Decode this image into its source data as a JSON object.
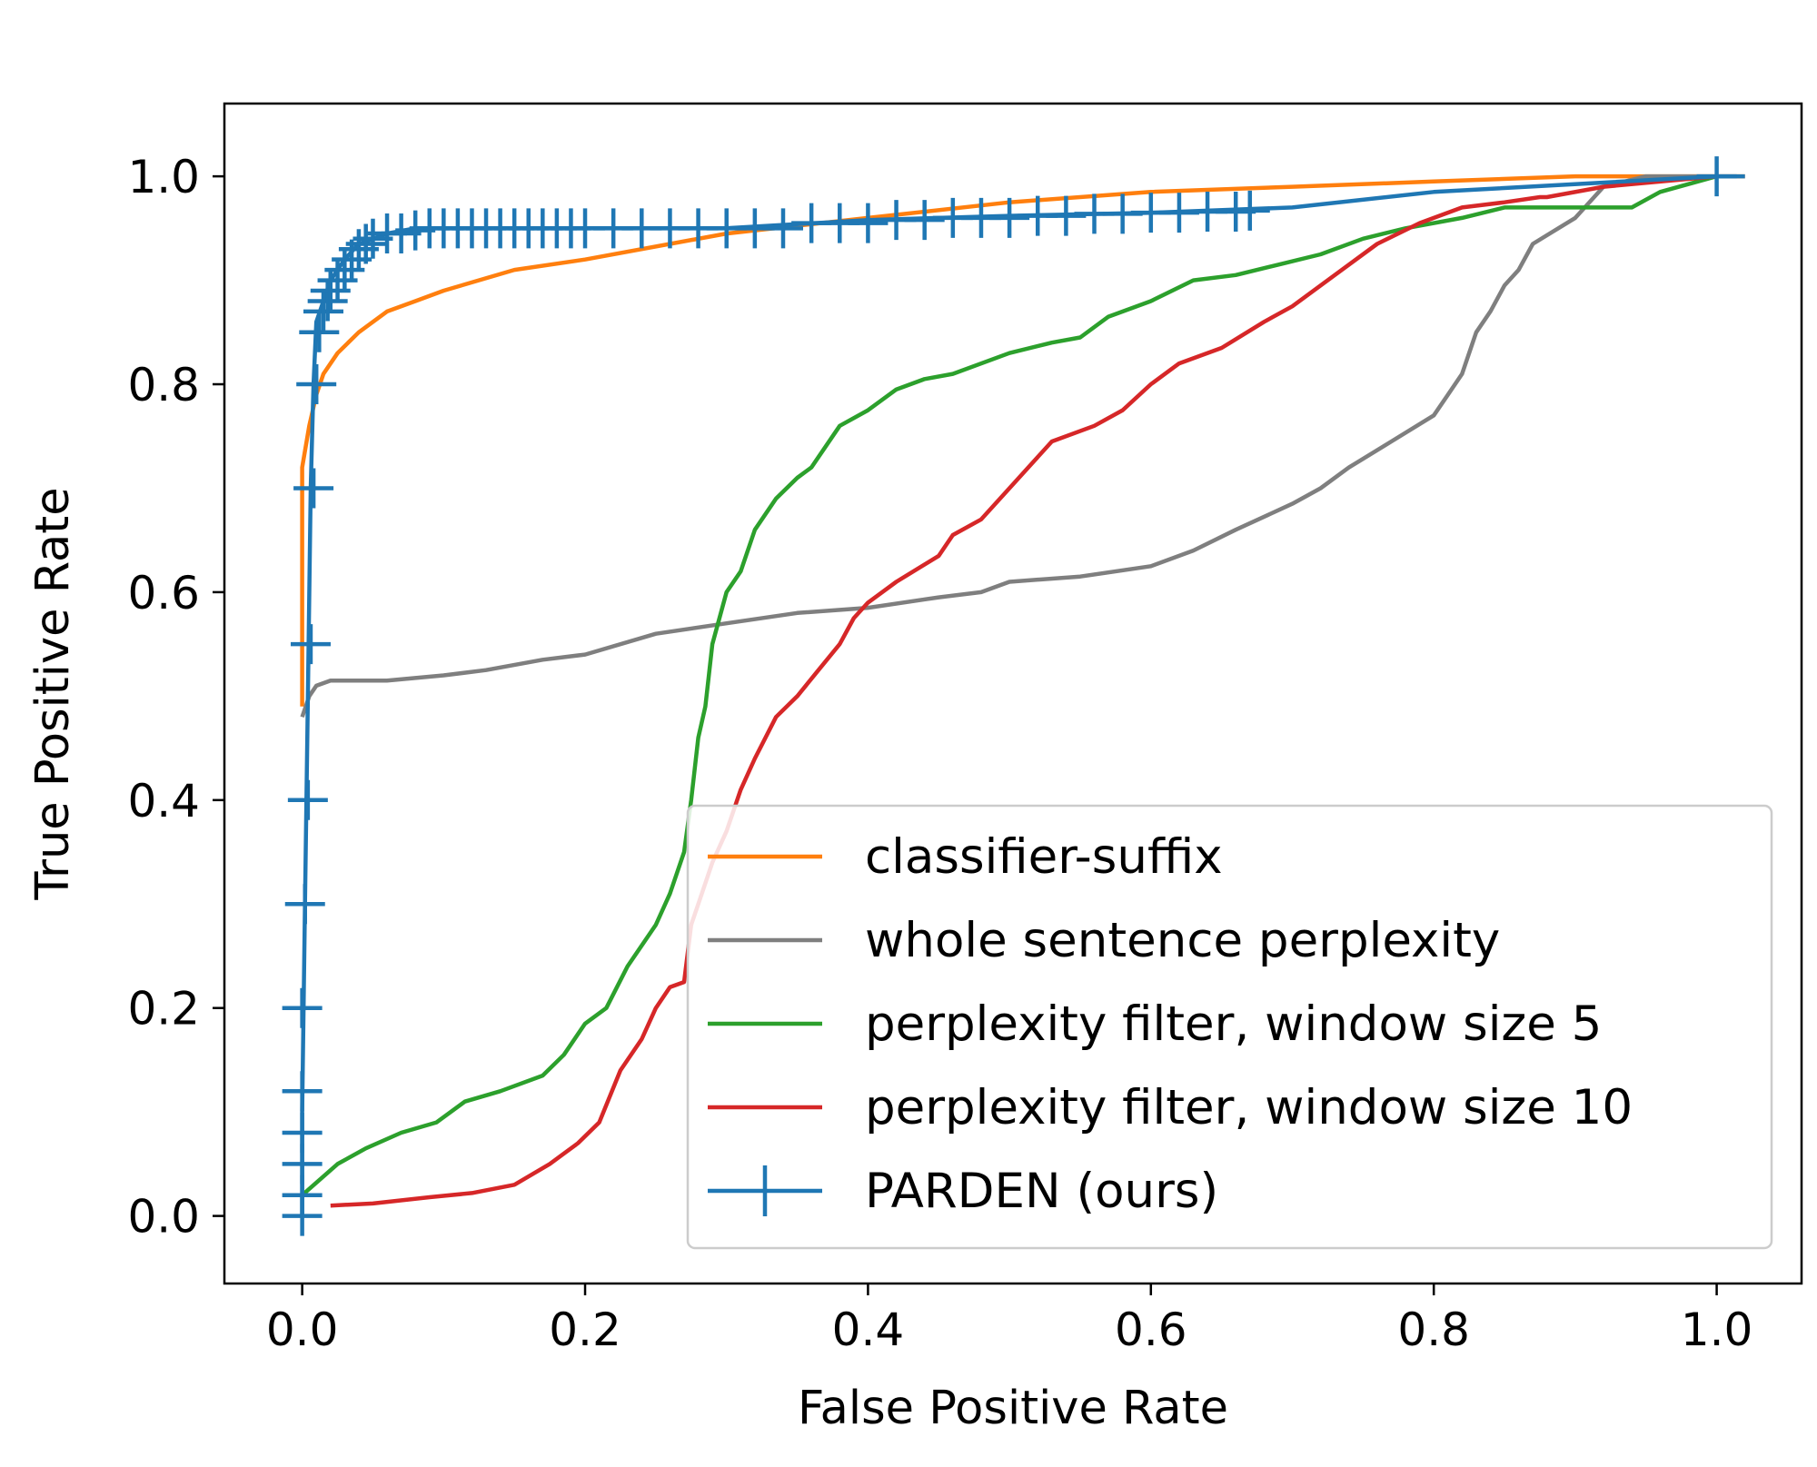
{
  "chart_data": {
    "type": "line",
    "title": "",
    "xlabel": "False Positive Rate",
    "ylabel": "True Positive Rate",
    "xlim": [
      -0.055,
      1.06
    ],
    "ylim": [
      -0.065,
      1.07
    ],
    "x_ticks": [
      "0.0",
      "0.2",
      "0.4",
      "0.6",
      "0.8",
      "1.0"
    ],
    "y_ticks": [
      "0.0",
      "0.2",
      "0.4",
      "0.6",
      "0.8",
      "1.0"
    ],
    "grid": false,
    "legend_position": "lower-right",
    "series": [
      {
        "name": "classifier-suffix",
        "color": "#ff7f0e",
        "marker": "none",
        "x": [
          0.0,
          0.0,
          0.005,
          0.01,
          0.015,
          0.025,
          0.04,
          0.06,
          0.08,
          0.1,
          0.15,
          0.2,
          0.3,
          0.4,
          0.5,
          0.6,
          0.7,
          0.8,
          0.9,
          1.0,
          1.02
        ],
        "y": [
          0.49,
          0.72,
          0.76,
          0.79,
          0.81,
          0.83,
          0.85,
          0.87,
          0.88,
          0.89,
          0.91,
          0.92,
          0.945,
          0.96,
          0.975,
          0.985,
          0.99,
          0.995,
          1.0,
          1.0,
          1.0
        ]
      },
      {
        "name": "whole sentence perplexity",
        "color": "#7f7f7f",
        "marker": "none",
        "x": [
          0.0,
          0.005,
          0.01,
          0.02,
          0.06,
          0.1,
          0.13,
          0.17,
          0.2,
          0.25,
          0.3,
          0.35,
          0.4,
          0.45,
          0.48,
          0.5,
          0.55,
          0.6,
          0.63,
          0.66,
          0.7,
          0.72,
          0.74,
          0.77,
          0.8,
          0.81,
          0.82,
          0.83,
          0.84,
          0.85,
          0.86,
          0.87,
          0.9,
          0.92,
          0.95,
          1.0
        ],
        "y": [
          0.48,
          0.5,
          0.51,
          0.515,
          0.515,
          0.52,
          0.525,
          0.535,
          0.54,
          0.56,
          0.57,
          0.58,
          0.585,
          0.595,
          0.6,
          0.61,
          0.615,
          0.625,
          0.64,
          0.66,
          0.685,
          0.7,
          0.72,
          0.745,
          0.77,
          0.79,
          0.81,
          0.85,
          0.87,
          0.895,
          0.91,
          0.935,
          0.96,
          0.99,
          1.0,
          1.0
        ]
      },
      {
        "name": "perplexity filter, window size 5",
        "color": "#2ca02c",
        "marker": "none",
        "x": [
          0.0,
          0.025,
          0.045,
          0.07,
          0.095,
          0.115,
          0.14,
          0.17,
          0.185,
          0.2,
          0.215,
          0.23,
          0.25,
          0.26,
          0.27,
          0.275,
          0.28,
          0.285,
          0.29,
          0.3,
          0.31,
          0.32,
          0.335,
          0.35,
          0.36,
          0.38,
          0.4,
          0.42,
          0.44,
          0.46,
          0.5,
          0.53,
          0.55,
          0.57,
          0.6,
          0.63,
          0.66,
          0.69,
          0.72,
          0.75,
          0.78,
          0.82,
          0.85,
          0.88,
          0.94,
          0.96,
          1.0
        ],
        "y": [
          0.02,
          0.05,
          0.065,
          0.08,
          0.09,
          0.11,
          0.12,
          0.135,
          0.155,
          0.185,
          0.2,
          0.24,
          0.28,
          0.31,
          0.35,
          0.4,
          0.46,
          0.49,
          0.55,
          0.6,
          0.62,
          0.66,
          0.69,
          0.71,
          0.72,
          0.76,
          0.775,
          0.795,
          0.805,
          0.81,
          0.83,
          0.84,
          0.845,
          0.865,
          0.88,
          0.9,
          0.905,
          0.915,
          0.925,
          0.94,
          0.95,
          0.96,
          0.97,
          0.97,
          0.97,
          0.985,
          1.0
        ]
      },
      {
        "name": "perplexity filter, window size 10",
        "color": "#d62728",
        "marker": "none",
        "x": [
          0.02,
          0.05,
          0.09,
          0.12,
          0.15,
          0.175,
          0.195,
          0.21,
          0.225,
          0.24,
          0.25,
          0.26,
          0.27,
          0.275,
          0.28,
          0.29,
          0.3,
          0.31,
          0.32,
          0.335,
          0.35,
          0.365,
          0.38,
          0.39,
          0.4,
          0.42,
          0.45,
          0.46,
          0.48,
          0.5,
          0.53,
          0.56,
          0.58,
          0.6,
          0.62,
          0.65,
          0.68,
          0.7,
          0.73,
          0.76,
          0.79,
          0.82,
          0.85,
          0.875,
          0.88,
          0.92,
          1.0
        ],
        "y": [
          0.01,
          0.012,
          0.018,
          0.022,
          0.03,
          0.05,
          0.07,
          0.09,
          0.14,
          0.17,
          0.2,
          0.22,
          0.225,
          0.28,
          0.3,
          0.34,
          0.37,
          0.41,
          0.44,
          0.48,
          0.5,
          0.525,
          0.55,
          0.575,
          0.59,
          0.61,
          0.635,
          0.655,
          0.67,
          0.7,
          0.745,
          0.76,
          0.775,
          0.8,
          0.82,
          0.835,
          0.86,
          0.875,
          0.905,
          0.935,
          0.955,
          0.97,
          0.975,
          0.98,
          0.98,
          0.99,
          1.0
        ]
      },
      {
        "name": "PARDEN (ours)",
        "color": "#1f77b4",
        "marker": "plus",
        "x": [
          0.0,
          0.0,
          0.002,
          0.004,
          0.006,
          0.008,
          0.01,
          0.015,
          0.02,
          0.03,
          0.04,
          0.06,
          0.08,
          0.1,
          0.15,
          0.2,
          0.3,
          0.4,
          0.5,
          0.6,
          0.7,
          0.8,
          1.0,
          1.02
        ],
        "y": [
          0.0,
          0.1,
          0.3,
          0.5,
          0.7,
          0.8,
          0.86,
          0.88,
          0.9,
          0.92,
          0.935,
          0.945,
          0.95,
          0.95,
          0.95,
          0.95,
          0.95,
          0.958,
          0.962,
          0.965,
          0.97,
          0.985,
          1.0,
          1.0
        ],
        "marker_x": [
          0.0,
          0.0,
          0.0,
          0.0,
          0.0,
          0.0,
          0.002,
          0.004,
          0.006,
          0.008,
          0.01,
          0.012,
          0.015,
          0.018,
          0.02,
          0.025,
          0.03,
          0.035,
          0.04,
          0.045,
          0.05,
          0.06,
          0.07,
          0.08,
          0.09,
          0.1,
          0.11,
          0.12,
          0.13,
          0.14,
          0.15,
          0.16,
          0.17,
          0.18,
          0.19,
          0.2,
          0.22,
          0.24,
          0.26,
          0.28,
          0.3,
          0.32,
          0.34,
          0.36,
          0.38,
          0.4,
          0.42,
          0.44,
          0.46,
          0.48,
          0.5,
          0.52,
          0.54,
          0.56,
          0.58,
          0.6,
          0.62,
          0.64,
          0.66,
          0.67,
          1.0
        ],
        "marker_y": [
          0.0,
          0.02,
          0.05,
          0.08,
          0.12,
          0.2,
          0.3,
          0.4,
          0.55,
          0.7,
          0.8,
          0.85,
          0.87,
          0.88,
          0.89,
          0.9,
          0.91,
          0.92,
          0.93,
          0.935,
          0.94,
          0.945,
          0.945,
          0.948,
          0.95,
          0.95,
          0.95,
          0.95,
          0.95,
          0.95,
          0.95,
          0.95,
          0.95,
          0.95,
          0.95,
          0.95,
          0.95,
          0.95,
          0.95,
          0.95,
          0.95,
          0.95,
          0.95,
          0.955,
          0.955,
          0.955,
          0.958,
          0.958,
          0.96,
          0.96,
          0.96,
          0.962,
          0.962,
          0.964,
          0.964,
          0.965,
          0.965,
          0.966,
          0.966,
          0.967,
          1.0
        ]
      }
    ]
  }
}
